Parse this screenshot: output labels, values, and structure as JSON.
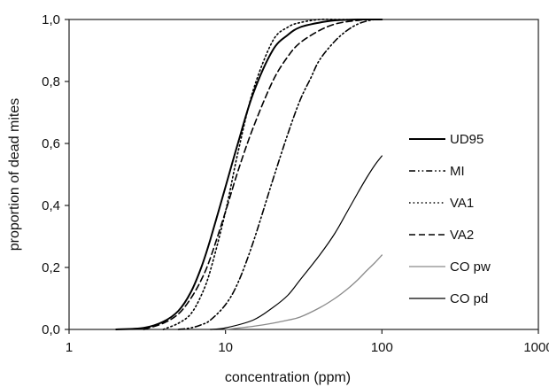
{
  "chart_data": {
    "type": "line",
    "xlabel": "concentration (ppm)",
    "ylabel": "proportion of dead mites",
    "xscale": "log",
    "xlim": [
      1,
      1000
    ],
    "ylim": [
      0,
      1
    ],
    "x_ticks": [
      1,
      10,
      100,
      1000
    ],
    "x_tick_labels": [
      "1",
      "10",
      "100",
      "1000"
    ],
    "y_ticks": [
      0,
      0.2,
      0.4,
      0.6,
      0.8,
      1
    ],
    "y_tick_labels": [
      "0,0",
      "0,2",
      "0,4",
      "0,6",
      "0,8",
      "1,0"
    ],
    "grid": false,
    "legend_position": "right",
    "series": [
      {
        "name": "UD95",
        "dash": "solid",
        "color": "#000000",
        "width": 2.0,
        "x": [
          2,
          3,
          4,
          5,
          6,
          7,
          8,
          10,
          12,
          15,
          20,
          25,
          30,
          40,
          50,
          60,
          70,
          80,
          100
        ],
        "y": [
          0.0,
          0.005,
          0.025,
          0.06,
          0.12,
          0.2,
          0.29,
          0.46,
          0.6,
          0.76,
          0.9,
          0.95,
          0.975,
          0.99,
          0.997,
          0.999,
          1.0,
          1.0,
          1.0
        ]
      },
      {
        "name": "MI",
        "dash": "dashdotdot",
        "color": "#000000",
        "width": 1.6,
        "x": [
          5,
          6,
          7,
          8,
          10,
          12,
          15,
          20,
          25,
          30,
          35,
          40,
          50,
          60,
          70,
          80,
          90,
          100
        ],
        "y": [
          0.0,
          0.005,
          0.015,
          0.03,
          0.08,
          0.15,
          0.28,
          0.48,
          0.63,
          0.74,
          0.81,
          0.87,
          0.93,
          0.965,
          0.985,
          0.995,
          1.0,
          1.0
        ]
      },
      {
        "name": "VA1",
        "dash": "dotted",
        "color": "#000000",
        "width": 1.6,
        "x": [
          4,
          5,
          6,
          7,
          8,
          10,
          12,
          15,
          20,
          25,
          30,
          40,
          50,
          60
        ],
        "y": [
          0.0,
          0.02,
          0.05,
          0.11,
          0.19,
          0.38,
          0.57,
          0.77,
          0.93,
          0.975,
          0.99,
          1.0,
          1.0,
          1.0
        ]
      },
      {
        "name": "VA2",
        "dash": "dashed",
        "color": "#000000",
        "width": 1.6,
        "x": [
          3,
          4,
          5,
          6,
          7,
          8,
          10,
          12,
          15,
          20,
          25,
          30,
          40,
          50,
          60,
          70,
          80,
          100
        ],
        "y": [
          0.0,
          0.02,
          0.05,
          0.1,
          0.16,
          0.23,
          0.38,
          0.51,
          0.65,
          0.8,
          0.88,
          0.925,
          0.965,
          0.985,
          0.993,
          0.997,
          1.0,
          1.0
        ]
      },
      {
        "name": "CO pw",
        "dash": "solid",
        "color": "#8a8a8a",
        "width": 1.3,
        "x": [
          10,
          15,
          20,
          25,
          30,
          40,
          50,
          60,
          70,
          80,
          90,
          100
        ],
        "y": [
          0.0,
          0.01,
          0.02,
          0.03,
          0.04,
          0.07,
          0.1,
          0.13,
          0.16,
          0.19,
          0.215,
          0.24
        ]
      },
      {
        "name": "CO pd",
        "dash": "solid",
        "color": "#000000",
        "width": 1.2,
        "x": [
          8,
          10,
          15,
          20,
          25,
          30,
          40,
          50,
          60,
          70,
          80,
          90,
          100
        ],
        "y": [
          0.0,
          0.005,
          0.03,
          0.07,
          0.11,
          0.16,
          0.24,
          0.31,
          0.38,
          0.44,
          0.49,
          0.53,
          0.56
        ]
      }
    ]
  }
}
